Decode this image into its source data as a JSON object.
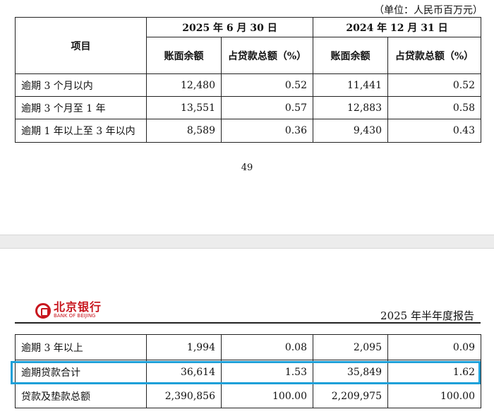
{
  "page1": {
    "unit_note": "（单位：人民币百万元）",
    "header": {
      "item": "项目",
      "period1": "2025 年 6 月 30 日",
      "period2": "2024 年 12 月 31 日",
      "col_balance": "账面余额",
      "col_ratio": "占贷款总额（%）"
    },
    "rows": [
      {
        "label": "逾期 3 个月以内",
        "bal1": "12,480",
        "pct1": "0.52",
        "bal2": "11,441",
        "pct2": "0.52"
      },
      {
        "label": "逾期 3 个月至 1 年",
        "bal1": "13,551",
        "pct1": "0.57",
        "bal2": "12,883",
        "pct2": "0.58"
      },
      {
        "label": "逾期 1 年以上至 3 年以内",
        "bal1": "8,589",
        "pct1": "0.36",
        "bal2": "9,430",
        "pct2": "0.43"
      }
    ],
    "page_number": "49"
  },
  "page2": {
    "logo_cn": "北京银行",
    "logo_en": "BANK OF BEIJING",
    "report_title": "2025 年半年度报告",
    "rows": [
      {
        "label": "逾期 3 年以上",
        "bal1": "1,994",
        "pct1": "0.08",
        "bal2": "2,095",
        "pct2": "0.09"
      },
      {
        "label": "逾期贷款合计",
        "bal1": "36,614",
        "pct1": "1.53",
        "bal2": "35,849",
        "pct2": "1.62"
      },
      {
        "label": "贷款及垫款总额",
        "bal1": "2,390,856",
        "pct1": "100.00",
        "bal2": "2,209,975",
        "pct2": "100.00"
      }
    ]
  }
}
